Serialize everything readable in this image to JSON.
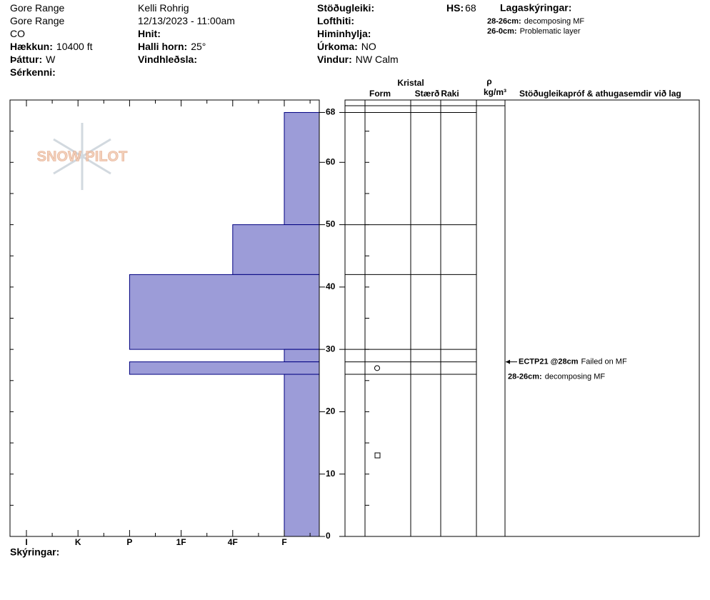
{
  "header": {
    "columns": [
      [
        {
          "text": "Gore Range"
        },
        {
          "text": "Gore Range"
        },
        {
          "text": "CO"
        },
        {
          "label": "Hækkun:",
          "value": "10400 ft"
        },
        {
          "label": "Þáttur:",
          "value": "W"
        },
        {
          "label": "Sérkenni:"
        }
      ],
      [
        {
          "text": "Kelli Rohrig"
        },
        {
          "text": "12/13/2023 - 11:00am"
        },
        {
          "label": "Hnit:"
        },
        {
          "label": "Halli horn:",
          "value": "25°"
        },
        {
          "label": "Vindhleðsla:"
        }
      ],
      [
        {
          "label": "Stöðugleiki:"
        },
        {
          "label": "Lofthiti:"
        },
        {
          "label": "Himinhylja:"
        },
        {
          "label": "Úrkoma:",
          "value": "NO"
        },
        {
          "label": "Vindur:",
          "value": "NW Calm"
        }
      ]
    ],
    "hs": {
      "label": "HS:",
      "value": 68
    },
    "legend": {
      "title": "Lagaskýringar:",
      "items": [
        {
          "label": "28-26cm:",
          "text": "decomposing MF"
        },
        {
          "label": "26-0cm:",
          "text": "Problematic layer"
        }
      ]
    }
  },
  "logo": "SNOW PILOT",
  "chart_data": {
    "type": "snow-profile",
    "ylim": [
      0,
      70
    ],
    "yticks": [
      0,
      10,
      20,
      30,
      40,
      50,
      60,
      68
    ],
    "hardness_scale": [
      "I",
      "K",
      "P",
      "1F",
      "4F",
      "F"
    ],
    "color": "#9c9cd8",
    "layers": [
      {
        "top": 68,
        "bottom": 50,
        "hardness": "F"
      },
      {
        "top": 50,
        "bottom": 42,
        "hardness": "4F"
      },
      {
        "top": 42,
        "bottom": 30,
        "hardness": "P"
      },
      {
        "top": 30,
        "bottom": 28,
        "hardness": "F"
      },
      {
        "top": 28,
        "bottom": 26,
        "hardness": "P",
        "grain_marker": "circle"
      },
      {
        "top": 26,
        "bottom": 0,
        "hardness": "F",
        "grain_marker": "square"
      }
    ],
    "column_headers": {
      "crystal": "Kristal",
      "form": "Form",
      "size": "Stærð",
      "moisture": "Raki",
      "rho": "ρ",
      "density_unit": "kg/m³",
      "comments": "Stöðugleikapróf & athugasemdir við lag"
    },
    "tests": [
      {
        "depth": 28,
        "label": "ECTP21 @28cm",
        "text": "Failed on MF"
      }
    ],
    "comments": [
      {
        "label": "28-26cm:",
        "text": "decomposing MF"
      }
    ],
    "footer": "Skýringar:"
  }
}
